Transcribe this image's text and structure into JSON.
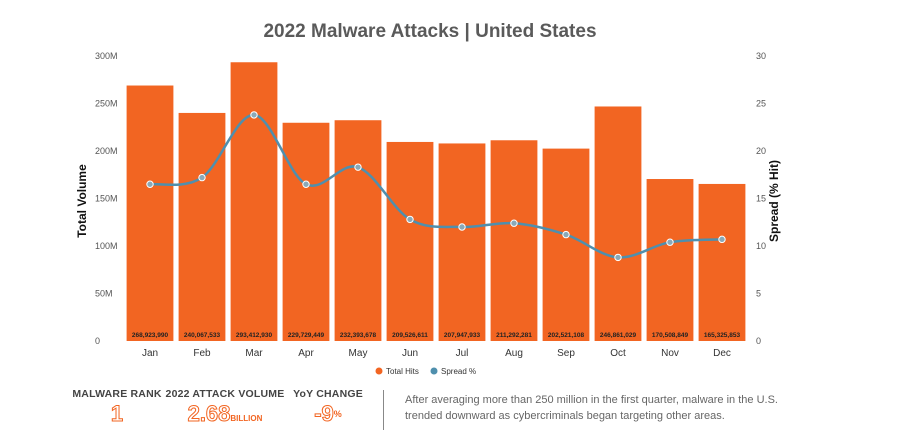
{
  "chart_data": {
    "type": "bar",
    "title": "2022 Malware Attacks | United States",
    "categories": [
      "Jan",
      "Feb",
      "Mar",
      "Apr",
      "May",
      "Jun",
      "Jul",
      "Aug",
      "Sep",
      "Oct",
      "Nov",
      "Dec"
    ],
    "series": [
      {
        "name": "Total Hits",
        "type": "bar",
        "axis": "left",
        "color": "#f26522",
        "values": [
          268923990,
          240067533,
          293412930,
          229729449,
          232393678,
          209526611,
          207947933,
          211292281,
          202521108,
          246861029,
          170508849,
          165325853
        ],
        "labels": [
          "268,923,990",
          "240,067,533",
          "293,412,930",
          "229,729,449",
          "232,393,678",
          "209,526,611",
          "207,947,933",
          "211,292,281",
          "202,521,108",
          "246,861,029",
          "170,508,849",
          "165,325,853"
        ]
      },
      {
        "name": "Spread %",
        "type": "line",
        "axis": "right",
        "color": "#4f8fad",
        "values": [
          16.5,
          17.2,
          23.8,
          16.5,
          18.3,
          12.8,
          12.0,
          12.4,
          11.2,
          8.8,
          10.4,
          10.7
        ]
      }
    ],
    "ylabel": "Total Volume",
    "y2label": "Spread (% Hit)",
    "ylim": [
      0,
      300000000
    ],
    "y2lim": [
      0,
      30
    ],
    "yticks": [
      0,
      50000000,
      100000000,
      150000000,
      200000000,
      250000000,
      300000000
    ],
    "ytick_labels": [
      "0",
      "50M",
      "100M",
      "150M",
      "200M",
      "250M",
      "300M"
    ],
    "y2ticks": [
      0,
      5,
      10,
      15,
      20,
      25,
      30
    ],
    "y2tick_labels": [
      "0",
      "5",
      "10",
      "15",
      "20",
      "25",
      "30"
    ],
    "grid": false,
    "legend": "bottom-center"
  },
  "footer": {
    "rank_label": "MALWARE RANK",
    "rank_value": "1",
    "volume_label": "2022 ATTACK VOLUME",
    "volume_value": "2.68",
    "volume_unit": "BILLION",
    "yoy_label": "YoY CHANGE",
    "yoy_value": "-9",
    "yoy_unit": "%",
    "summary": "After averaging more than 250 million in the first quarter, malware in the U.S. trended downward as cybercriminals began targeting other areas."
  }
}
